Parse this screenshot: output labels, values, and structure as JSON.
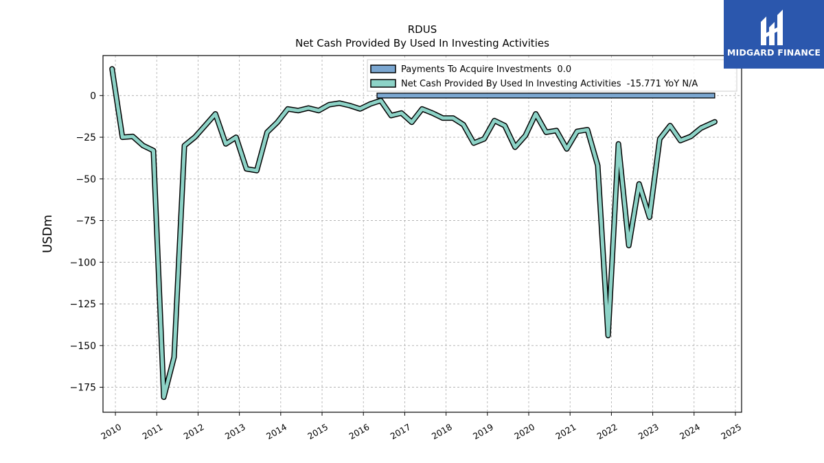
{
  "brand": {
    "name": "MIDGARD FINANCE",
    "bg_color": "#2b57ad"
  },
  "chart_data": {
    "type": "line",
    "title": "RDUS",
    "subtitle": "Net Cash Provided By Used In Investing Activities",
    "ylabel": "USDm",
    "xlabel": "",
    "xlim": [
      2009.7,
      2025.15
    ],
    "ylim": [
      -190,
      24
    ],
    "x_ticks": [
      "2010",
      "2011",
      "2012",
      "2013",
      "2014",
      "2015",
      "2016",
      "2017",
      "2018",
      "2019",
      "2020",
      "2021",
      "2022",
      "2023",
      "2024",
      "2025"
    ],
    "y_ticks": [
      0,
      -25,
      -50,
      -75,
      -100,
      -125,
      -150,
      -175
    ],
    "y_tick_labels": [
      "0",
      "−25",
      "−50",
      "−75",
      "−100",
      "−125",
      "−150",
      "−175"
    ],
    "grid": true,
    "legend_position": "top-right",
    "series": [
      {
        "name": "Payments To Acquire Investments  0.0",
        "type": "bar",
        "color": "#7ba7d1",
        "x_start": 2016.33,
        "x_end": 2024.5,
        "value": 0.0
      },
      {
        "name": "Net Cash Provided By Used In Investing Activities  -15.771 YoY N/A",
        "type": "line",
        "color": "#8dd3c7",
        "points": [
          [
            2009.92,
            16
          ],
          [
            2010.17,
            -25
          ],
          [
            2010.42,
            -24.5
          ],
          [
            2010.67,
            -30
          ],
          [
            2010.92,
            -33
          ],
          [
            2011.17,
            -181
          ],
          [
            2011.42,
            -157
          ],
          [
            2011.67,
            -30
          ],
          [
            2011.92,
            -25
          ],
          [
            2012.17,
            -18
          ],
          [
            2012.42,
            -11
          ],
          [
            2012.67,
            -29
          ],
          [
            2012.92,
            -25
          ],
          [
            2013.17,
            -44
          ],
          [
            2013.42,
            -45
          ],
          [
            2013.67,
            -22
          ],
          [
            2013.92,
            -16
          ],
          [
            2014.17,
            -8
          ],
          [
            2014.42,
            -9
          ],
          [
            2014.67,
            -7.5
          ],
          [
            2014.92,
            -9
          ],
          [
            2015.17,
            -5.5
          ],
          [
            2015.42,
            -4.5
          ],
          [
            2015.67,
            -6
          ],
          [
            2015.92,
            -8
          ],
          [
            2016.17,
            -5
          ],
          [
            2016.42,
            -3
          ],
          [
            2016.67,
            -12
          ],
          [
            2016.92,
            -10.5
          ],
          [
            2017.17,
            -16
          ],
          [
            2017.42,
            -8
          ],
          [
            2017.67,
            -10.5
          ],
          [
            2017.92,
            -13.5
          ],
          [
            2018.17,
            -13.5
          ],
          [
            2018.42,
            -17.5
          ],
          [
            2018.67,
            -28.5
          ],
          [
            2018.92,
            -26
          ],
          [
            2019.17,
            -15
          ],
          [
            2019.42,
            -18
          ],
          [
            2019.67,
            -31
          ],
          [
            2019.92,
            -24
          ],
          [
            2020.17,
            -11
          ],
          [
            2020.42,
            -22
          ],
          [
            2020.67,
            -21
          ],
          [
            2020.92,
            -32
          ],
          [
            2021.17,
            -21.5
          ],
          [
            2021.42,
            -20.5
          ],
          [
            2021.67,
            -42
          ],
          [
            2021.92,
            -144
          ],
          [
            2022.17,
            -29
          ],
          [
            2022.42,
            -90
          ],
          [
            2022.67,
            -53
          ],
          [
            2022.92,
            -73
          ],
          [
            2023.17,
            -26
          ],
          [
            2023.42,
            -18
          ],
          [
            2023.67,
            -27
          ],
          [
            2023.92,
            -24.5
          ],
          [
            2024.17,
            -19.5
          ],
          [
            2024.5,
            -15.77
          ]
        ]
      }
    ]
  }
}
